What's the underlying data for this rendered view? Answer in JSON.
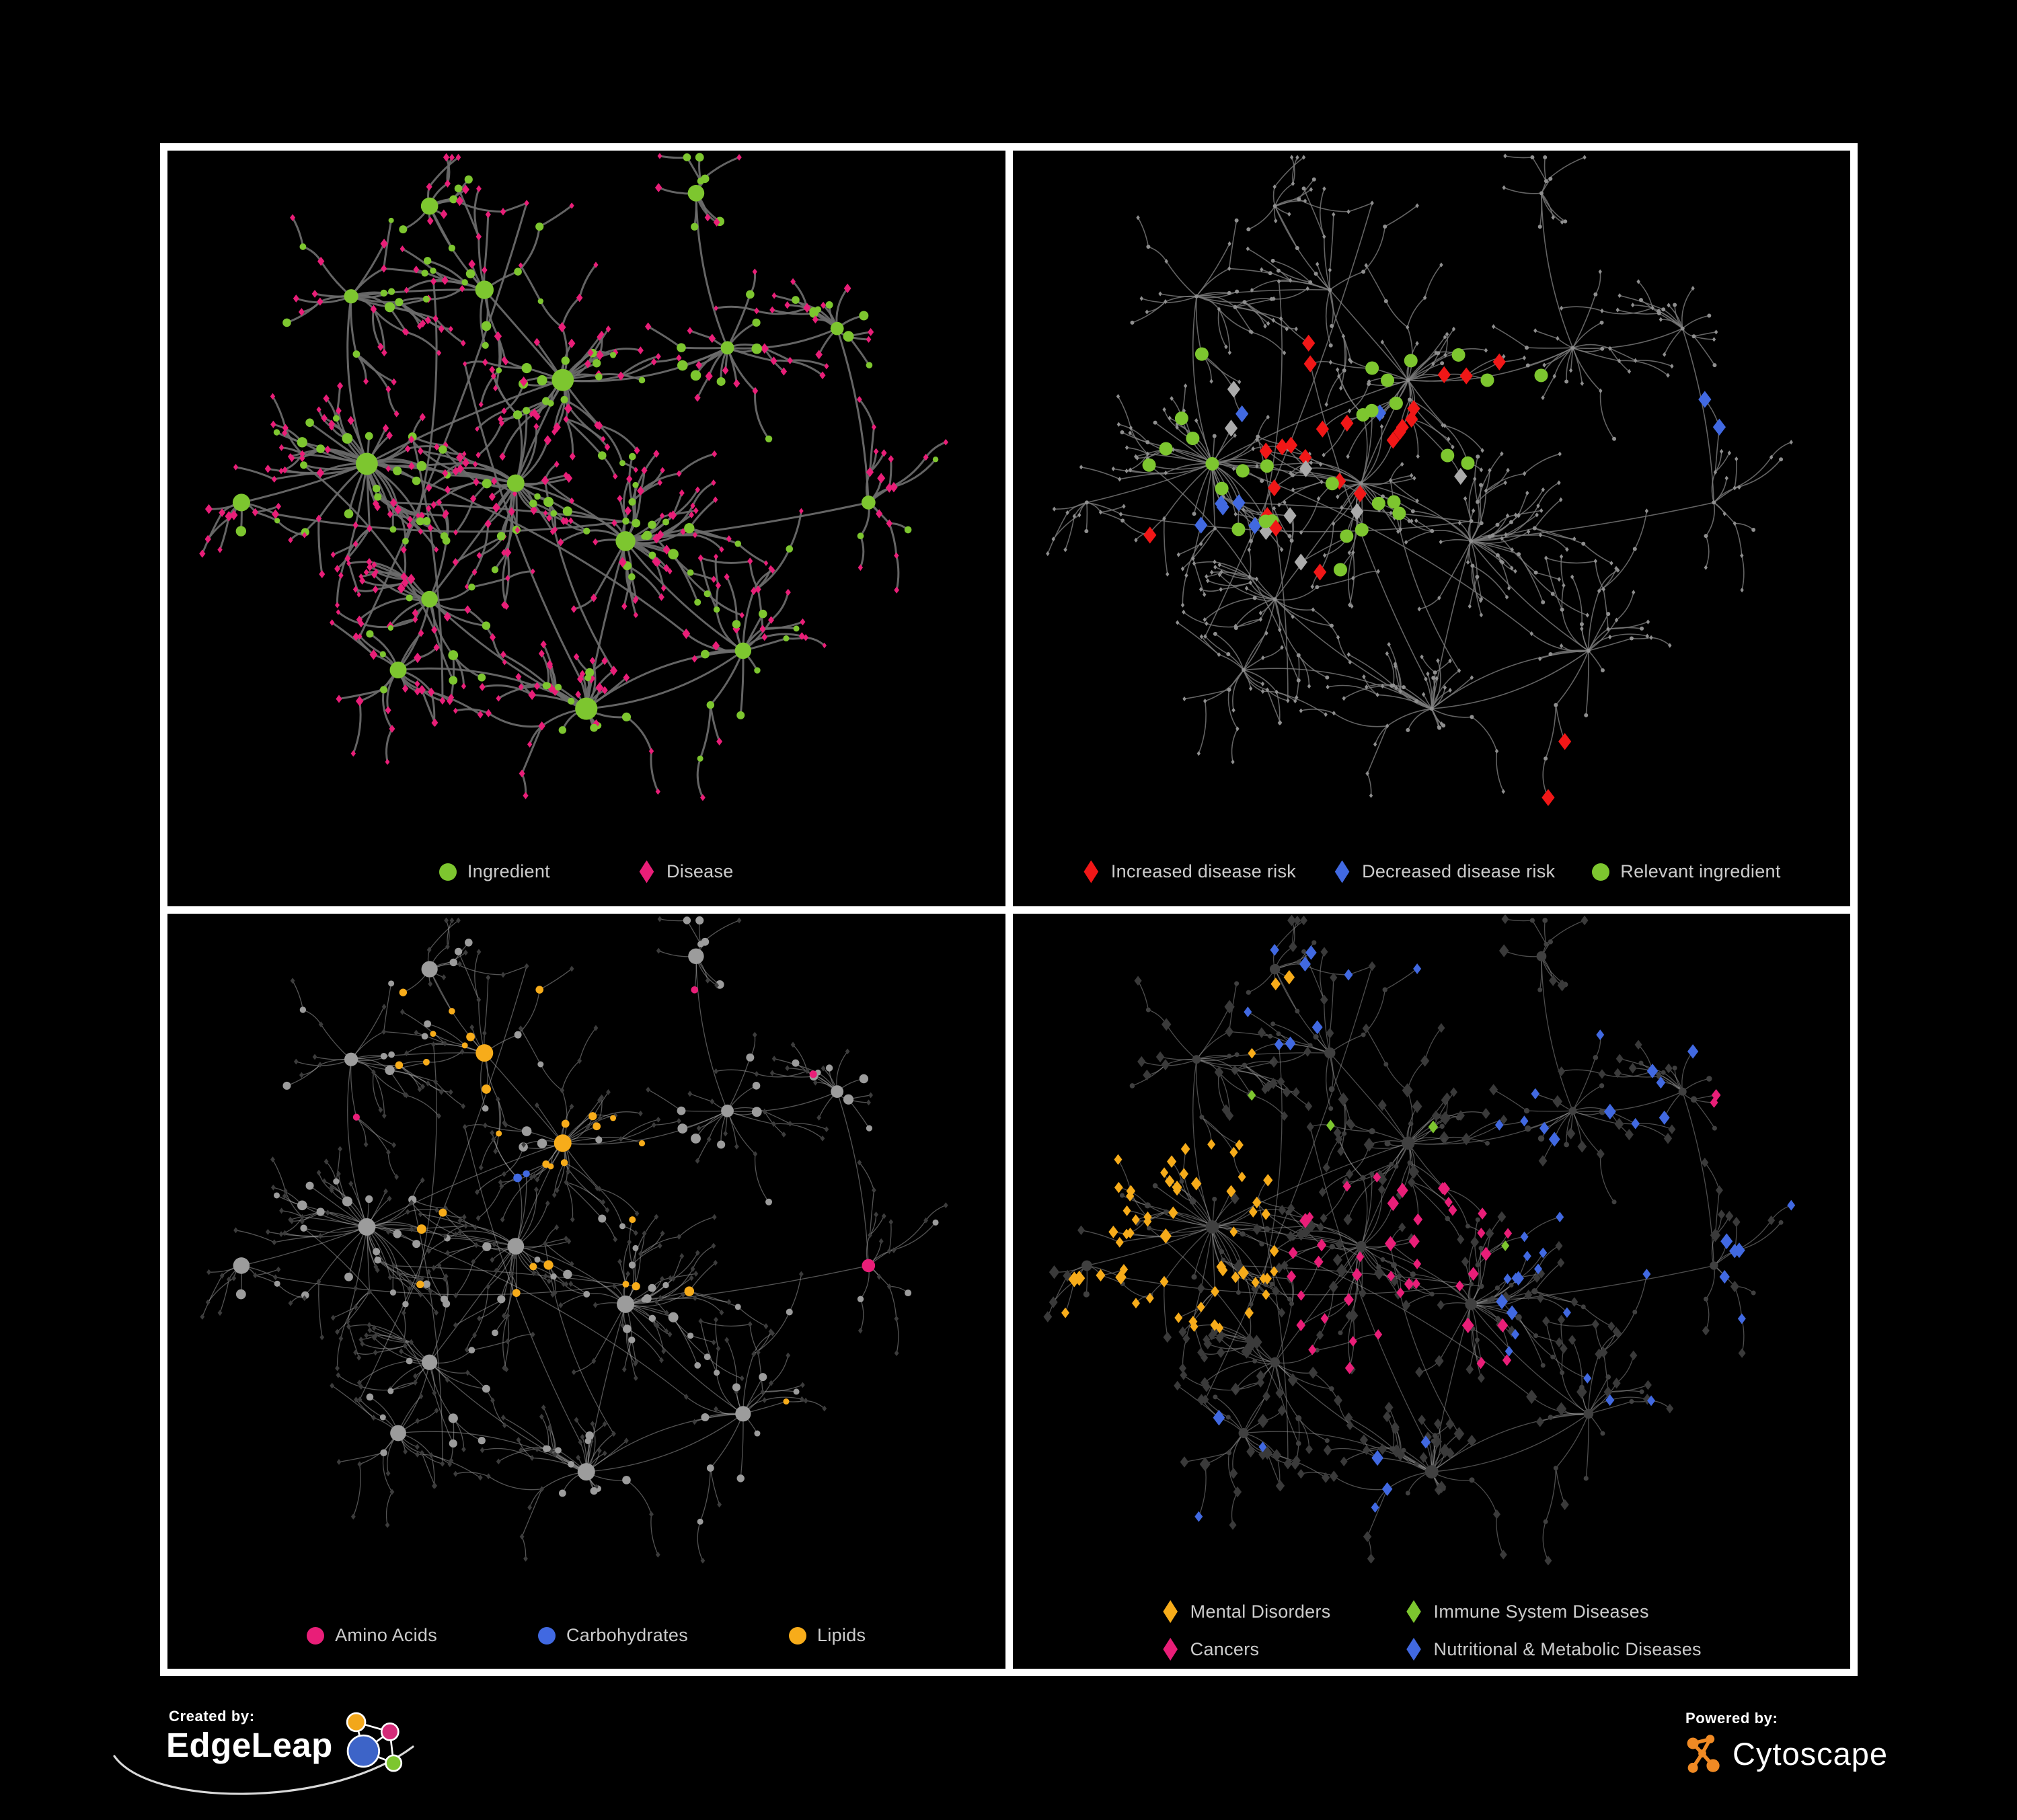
{
  "page": {
    "background": "#000000",
    "frame_color": "#ffffff",
    "legend_text_color": "#CCCCCC"
  },
  "panels": [
    {
      "id": "ingredient-disease-network",
      "legend": [
        {
          "shape": "circle",
          "color": "#7DC62F",
          "label": "Ingredient"
        },
        {
          "shape": "diamond",
          "color": "#E91E78",
          "label": "Disease"
        }
      ],
      "style": {
        "edge": {
          "color": "#6C6C6C",
          "width": 3,
          "opacity": 0.92
        }
      }
    },
    {
      "id": "disease-risk-network",
      "legend": [
        {
          "shape": "diamond",
          "color": "#F11717",
          "label": "Increased disease risk"
        },
        {
          "shape": "diamond",
          "color": "#4169E1",
          "label": "Decreased disease risk"
        },
        {
          "shape": "circle",
          "color": "#7DC62F",
          "label": "Relevant ingredient"
        }
      ],
      "style": {
        "edge": {
          "color": "#7C7C7C",
          "width": 1.6,
          "opacity": 0.8
        },
        "base": {
          "color": "#8F8F8F"
        },
        "highlights": {
          "red": {
            "color": "#F11717",
            "count": 25,
            "p": 0.5,
            "region": [
              0.28,
              0.66,
              0.3,
              0.66
            ],
            "extras": [
              [
                0.13,
                0.55
              ],
              [
                0.72,
                0.88
              ],
              [
                0.77,
                0.94
              ],
              [
                0.34,
                0.28
              ]
            ]
          },
          "blue": {
            "color": "#4169E1",
            "count": 9,
            "p": 0.45,
            "region": [
              0.2,
              0.44,
              0.34,
              0.62
            ],
            "extras": [
              [
                0.88,
                0.37
              ],
              [
                0.91,
                0.37
              ]
            ]
          },
          "gray": {
            "color": "#ABABAB",
            "count": 8,
            "p": 0.12,
            "region": [
              0.2,
              0.66,
              0.33,
              0.66
            ],
            "extras": []
          },
          "green": {
            "color": "#7DC62F",
            "count": 30,
            "p": 0.55,
            "region": [
              0.06,
              0.68,
              0.28,
              0.8
            ],
            "extras": []
          }
        }
      }
    },
    {
      "id": "ingredient-class-network",
      "legend": [
        {
          "shape": "circle",
          "color": "#E91E78",
          "label": "Amino Acids"
        },
        {
          "shape": "circle",
          "color": "#4169E1",
          "label": "Carbohydrates"
        },
        {
          "shape": "circle",
          "color": "#F7AC1A",
          "label": "Lipids"
        }
      ],
      "style": {
        "edge": {
          "color": "#A8A8A8",
          "width": 1.3,
          "opacity": 0.5
        },
        "ingredient_default": "#9C9C9C",
        "disease_default": "#3C3C3C",
        "categories": [
          {
            "key": "lipids",
            "color": "#F7AC1A",
            "cap": 78,
            "regions": [
              [
                0.26,
                0.58,
                0.08,
                0.44,
                0.6
              ],
              [
                0.28,
                0.62,
                0.44,
                0.64,
                0.25
              ],
              [
                0.52,
                0.78,
                0.52,
                0.78,
                0.15
              ]
            ]
          },
          {
            "key": "carbohydrates",
            "color": "#4169E1",
            "cap": 15,
            "regions": [
              [
                0.32,
                0.54,
                0.1,
                0.4,
                0.22
              ],
              [
                0.0,
                0.1,
                0.22,
                0.5,
                0.12
              ]
            ]
          },
          {
            "key": "amino_acids",
            "color": "#E91E78",
            "cap": 19,
            "regions": [
              [
                0.0,
                1.0,
                0.0,
                1.0,
                0.05
              ]
            ]
          }
        ]
      }
    },
    {
      "id": "disease-class-network",
      "legend": [
        {
          "shape": "diamond",
          "color": "#F7AC1A",
          "label": "Mental Disorders"
        },
        {
          "shape": "diamond",
          "color": "#7DC62F",
          "label": "Immune System Diseases"
        },
        {
          "shape": "diamond",
          "color": "#E91E78",
          "label": "Cancers"
        },
        {
          "shape": "diamond",
          "color": "#4169E1",
          "label": "Nutritional & Metabolic Diseases"
        }
      ],
      "style": {
        "edge": {
          "color": "#999999",
          "width": 1.3,
          "opacity": 0.5
        },
        "disease_default": "#3A3A3A",
        "ingredient_default": "#404040",
        "categories": [
          {
            "key": "mental_disorders",
            "color": "#F7AC1A",
            "cap": 100,
            "regions": [
              [
                0.03,
                0.3,
                0.3,
                0.62,
                0.85
              ],
              [
                0.22,
                0.42,
                0.04,
                0.22,
                0.15
              ]
            ]
          },
          {
            "key": "cancers",
            "color": "#E91E78",
            "cap": 70,
            "regions": [
              [
                0.32,
                0.6,
                0.36,
                0.68,
                0.5
              ],
              [
                0.86,
                1.0,
                0.2,
                0.42,
                0.6
              ]
            ]
          },
          {
            "key": "nutritional_metabolic",
            "color": "#4169E1",
            "cap": 110,
            "regions": [
              [
                0.58,
                1.0,
                0.04,
                0.92,
                0.38
              ],
              [
                0.04,
                0.55,
                0.66,
                0.96,
                0.1
              ],
              [
                0.25,
                0.6,
                0.0,
                0.2,
                0.22
              ]
            ]
          },
          {
            "key": "immune_system",
            "color": "#7DC62F",
            "cap": 12,
            "regions": [
              [
                0.05,
                0.62,
                0.04,
                0.62,
                0.035
              ]
            ]
          }
        ]
      }
    }
  ],
  "footer": {
    "created_by_label": "Created by:",
    "edgeleap_name": "EdgeLeap",
    "powered_by_label": "Powered by:",
    "cytoscape_name": "Cytoscape",
    "edgeleap_logo_colors": {
      "hub": "#3D64C8",
      "orange": "#F2A71B",
      "magenta": "#D42B78",
      "green": "#7DC62F",
      "lines": "#FFFFFF"
    },
    "cytoscape_logo_color": "#F08A24"
  },
  "network": {
    "seed": 20,
    "clusters": [
      [
        0.3,
        0.06,
        9,
        70
      ],
      [
        0.2,
        0.2,
        13,
        95
      ],
      [
        0.47,
        0.33,
        26,
        85
      ],
      [
        0.22,
        0.46,
        34,
        120
      ],
      [
        0.41,
        0.49,
        24,
        105
      ],
      [
        0.68,
        0.28,
        15,
        85
      ],
      [
        0.82,
        0.25,
        11,
        65
      ],
      [
        0.55,
        0.58,
        26,
        95
      ],
      [
        0.3,
        0.67,
        16,
        90
      ],
      [
        0.26,
        0.78,
        13,
        75
      ],
      [
        0.5,
        0.84,
        24,
        80
      ],
      [
        0.7,
        0.75,
        16,
        95
      ],
      [
        0.06,
        0.52,
        7,
        65
      ],
      [
        0.64,
        0.04,
        7,
        55
      ],
      [
        0.86,
        0.52,
        7,
        55
      ],
      [
        0.37,
        0.19,
        11,
        80
      ]
    ],
    "links": [
      [
        0,
        15
      ],
      [
        15,
        2
      ],
      [
        1,
        3
      ],
      [
        2,
        4
      ],
      [
        3,
        4
      ],
      [
        2,
        3
      ],
      [
        4,
        7
      ],
      [
        5,
        6
      ],
      [
        5,
        2
      ],
      [
        13,
        5
      ],
      [
        7,
        11
      ],
      [
        8,
        10
      ],
      [
        4,
        8
      ],
      [
        8,
        9
      ],
      [
        10,
        11
      ],
      [
        7,
        14
      ],
      [
        6,
        14
      ],
      [
        3,
        12
      ],
      [
        11,
        10
      ],
      [
        7,
        10
      ],
      [
        1,
        15
      ],
      [
        9,
        10
      ]
    ],
    "cross_links": 10
  }
}
